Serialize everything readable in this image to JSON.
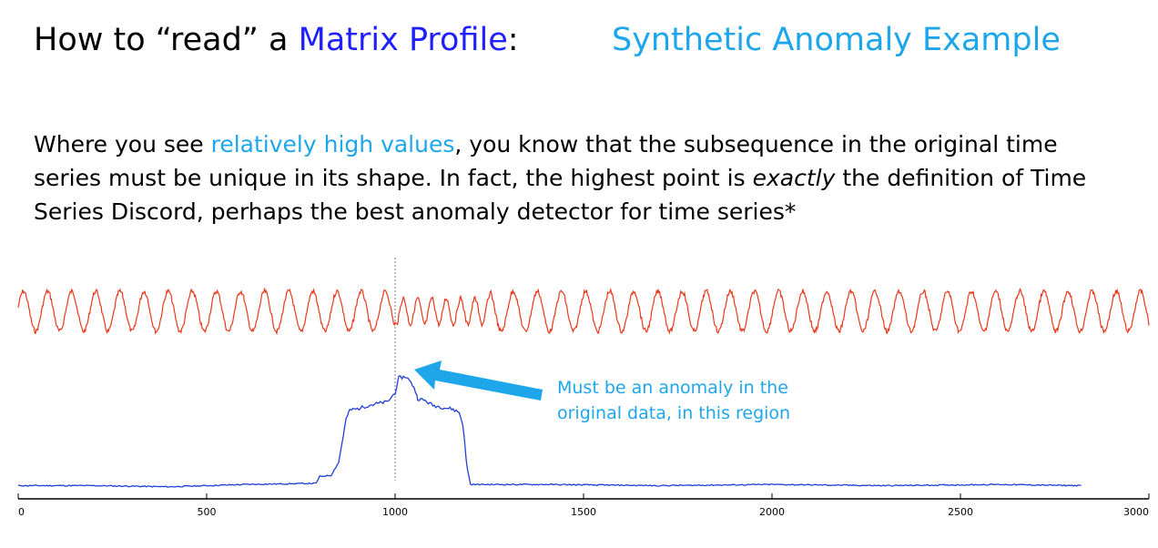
{
  "title": {
    "prefix": "How to “read” a ",
    "highlight": "Matrix Profile",
    "suffix": ":"
  },
  "subtitle": "Synthetic Anomaly Example",
  "paragraph": {
    "part1": "Where you see ",
    "highlight": "relatively high values",
    "part2": ", you know that the subsequence in the original time series must be unique in its shape. In fact, the highest point is ",
    "emphasis": "exactly",
    "part3": " the definition of Time Series Discord, perhaps the best anomaly detector for time series*"
  },
  "annotation": {
    "line1": "Must be an anomaly in the",
    "line2": "original data, in this region"
  },
  "colors": {
    "time_series": "#e8381c",
    "matrix_profile": "#1f3fd6",
    "accent": "#1ea6ea",
    "title_highlight": "#1f1fff"
  },
  "chart_data": {
    "type": "line",
    "xlim": [
      0,
      3000
    ],
    "xticks": [
      0,
      500,
      1000,
      1500,
      2000,
      2500,
      3000
    ],
    "anomaly_x": 1000,
    "series": [
      {
        "name": "time series",
        "kind": "sine",
        "start": 0,
        "end": 3000,
        "period": 64,
        "anomaly_range": [
          1000,
          1250
        ],
        "anomaly_period": 38
      },
      {
        "name": "matrix profile",
        "x": [
          0,
          200,
          400,
          600,
          790,
          800,
          830,
          850,
          870,
          880,
          900,
          930,
          960,
          980,
          1000,
          1010,
          1030,
          1050,
          1060,
          1080,
          1100,
          1130,
          1150,
          1170,
          1180,
          1190,
          1200,
          1400,
          1700,
          2000,
          2300,
          2600,
          2820
        ],
        "values": [
          0.02,
          0.02,
          0.01,
          0.03,
          0.04,
          0.1,
          0.11,
          0.22,
          0.6,
          0.68,
          0.69,
          0.72,
          0.74,
          0.75,
          0.83,
          0.96,
          0.97,
          0.88,
          0.78,
          0.76,
          0.72,
          0.7,
          0.69,
          0.66,
          0.55,
          0.2,
          0.03,
          0.03,
          0.02,
          0.03,
          0.02,
          0.03,
          0.02
        ],
        "ylim": [
          0,
          1
        ]
      }
    ]
  }
}
